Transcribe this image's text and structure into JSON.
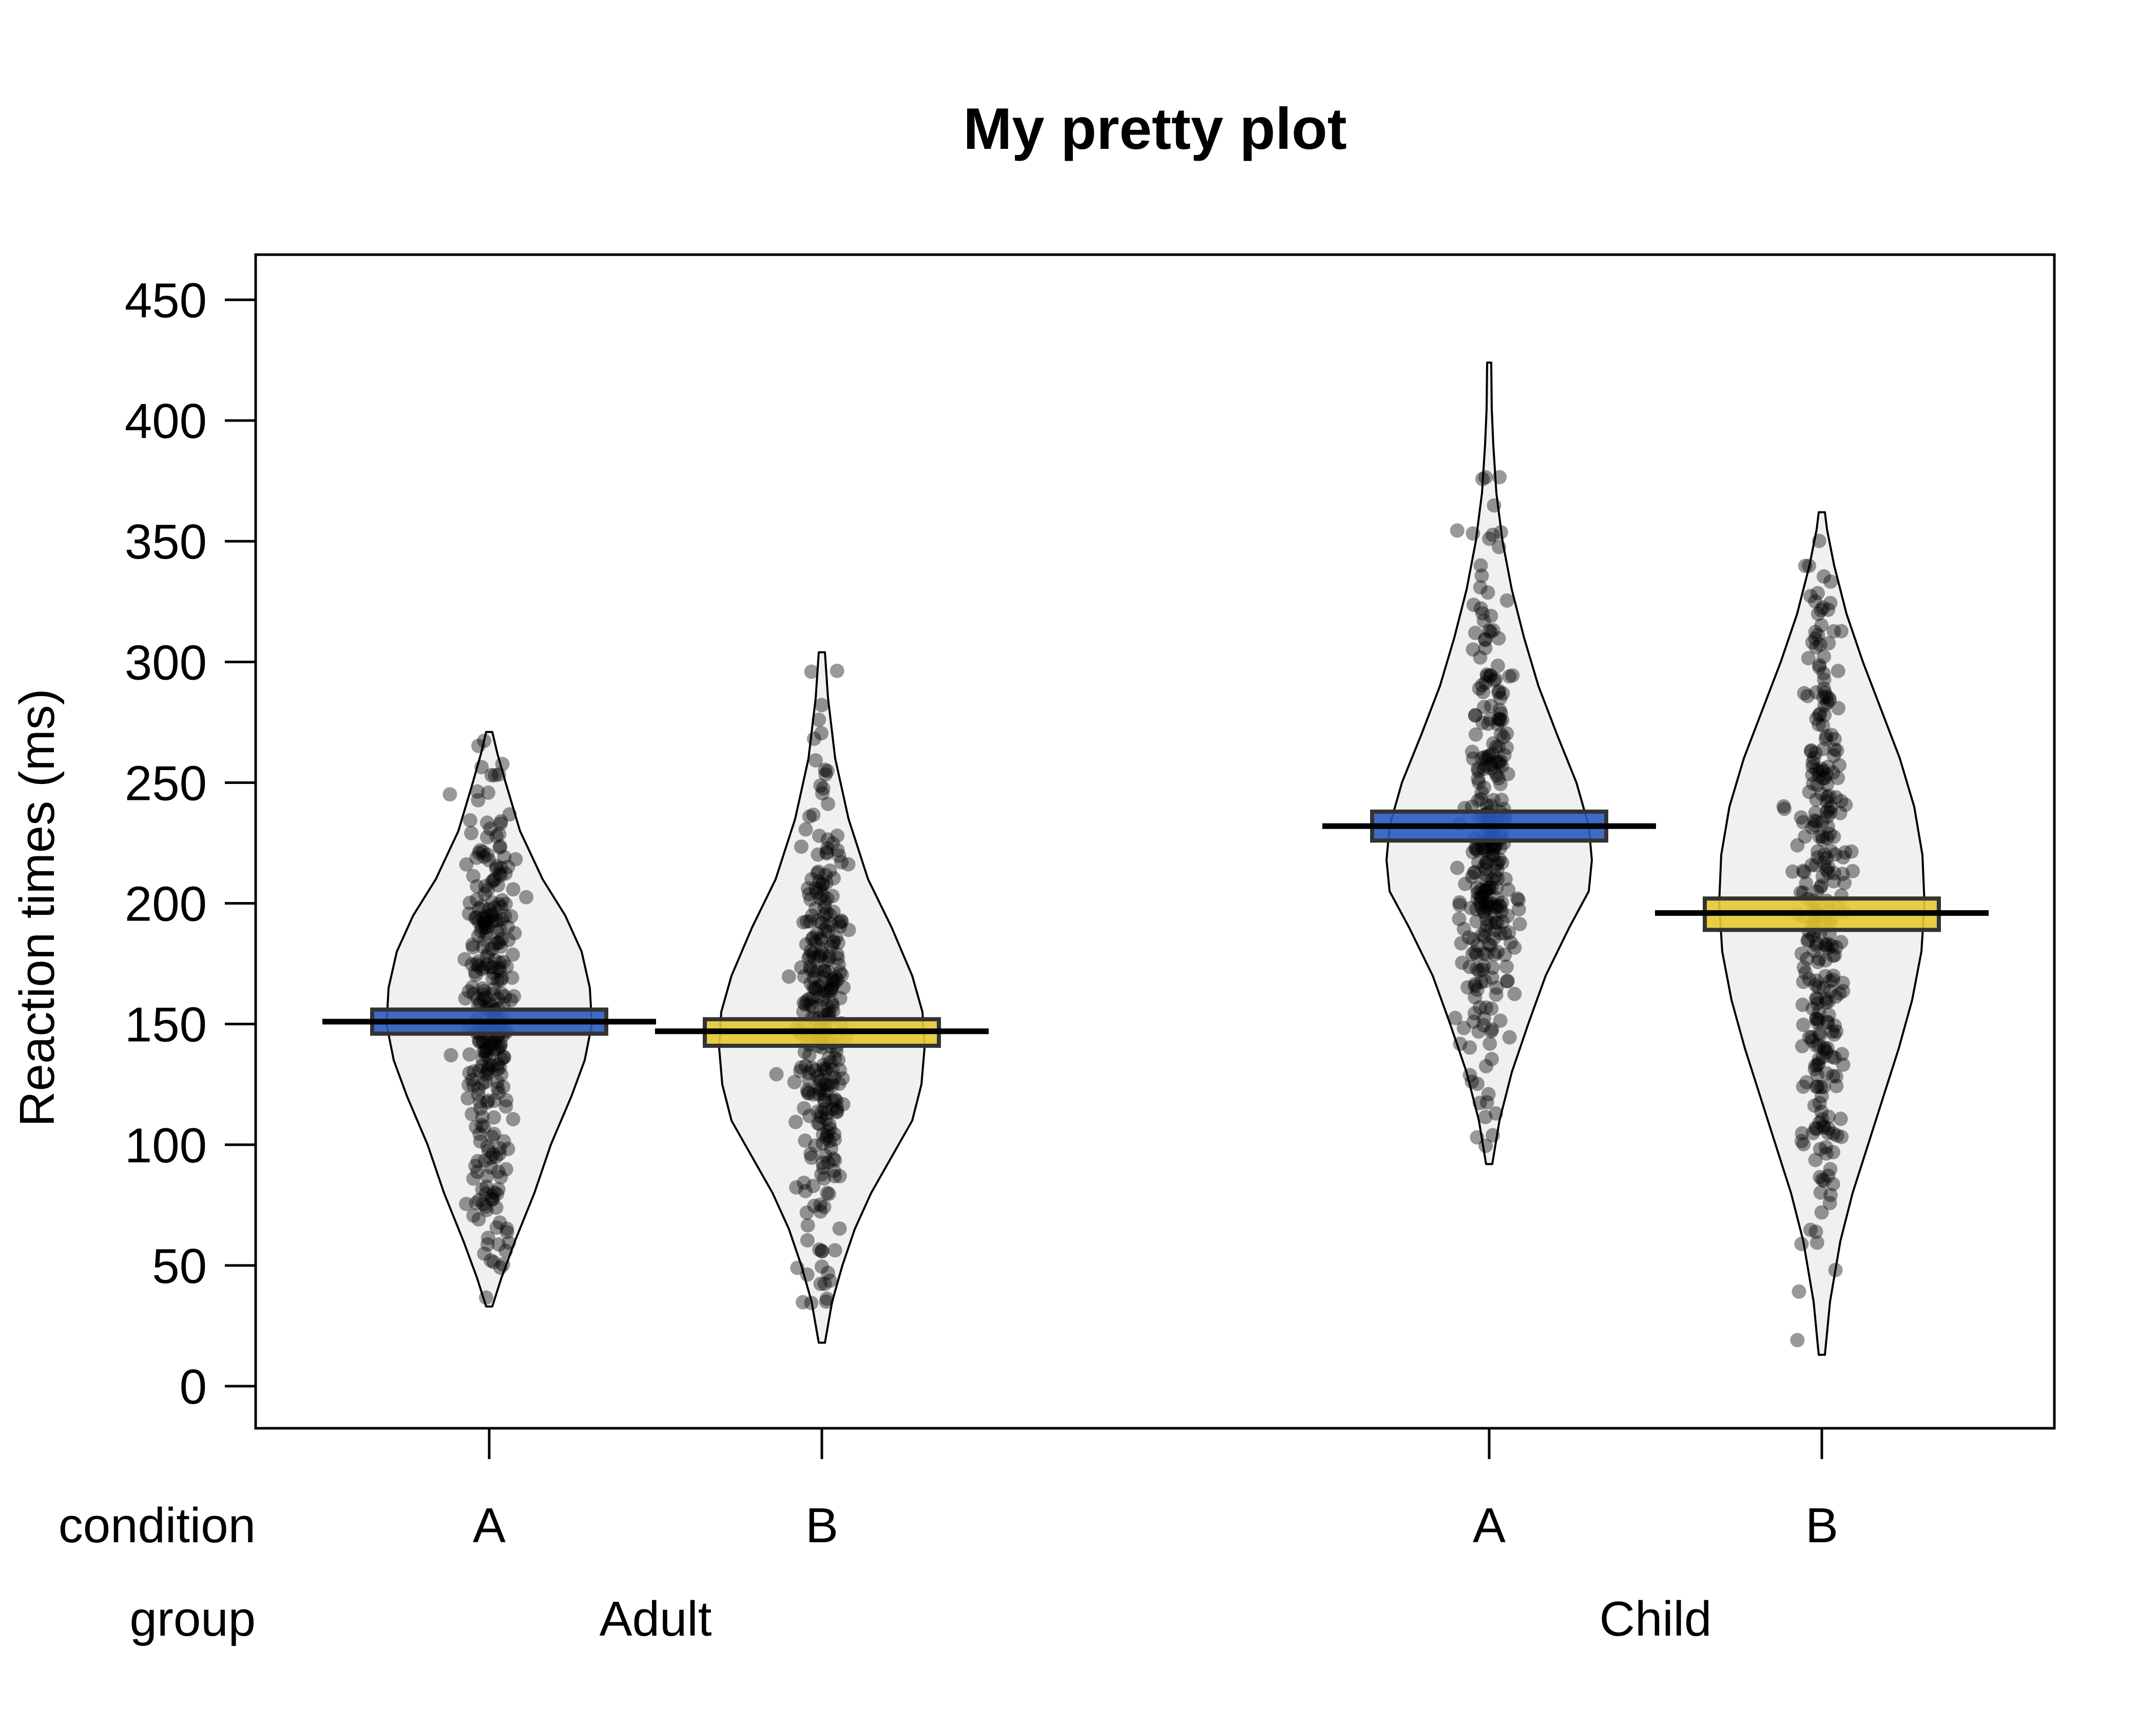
{
  "chart_data": {
    "type": "pirateplot",
    "title": "My pretty plot",
    "ylabel": "Reaction times (ms)",
    "xlabel": "",
    "ylim": [
      -18,
      468
    ],
    "yticks": [
      0,
      50,
      100,
      150,
      200,
      250,
      300,
      350,
      400,
      450
    ],
    "grid": false,
    "row_labels": {
      "condition": "condition",
      "group": "group"
    },
    "groups": [
      {
        "name": "Adult",
        "conditions": [
          {
            "name": "A",
            "mean": 151,
            "ci": [
              146,
              156
            ],
            "min": 33,
            "max": 271,
            "color": "#2b5bbf",
            "profile": [
              [
                33,
                0.03
              ],
              [
                45,
                0.12
              ],
              [
                60,
                0.25
              ],
              [
                80,
                0.44
              ],
              [
                100,
                0.6
              ],
              [
                120,
                0.8
              ],
              [
                135,
                0.93
              ],
              [
                150,
                1.0
              ],
              [
                165,
                0.98
              ],
              [
                180,
                0.9
              ],
              [
                195,
                0.74
              ],
              [
                210,
                0.52
              ],
              [
                230,
                0.3
              ],
              [
                250,
                0.16
              ],
              [
                262,
                0.08
              ],
              [
                271,
                0.03
              ]
            ]
          },
          {
            "name": "B",
            "mean": 147,
            "ci": [
              141,
              152
            ],
            "min": 18,
            "max": 304,
            "color": "#e5c832",
            "profile": [
              [
                18,
                0.03
              ],
              [
                35,
                0.1
              ],
              [
                50,
                0.2
              ],
              [
                65,
                0.32
              ],
              [
                80,
                0.48
              ],
              [
                95,
                0.68
              ],
              [
                110,
                0.88
              ],
              [
                125,
                0.97
              ],
              [
                140,
                1.0
              ],
              [
                155,
                0.98
              ],
              [
                170,
                0.88
              ],
              [
                190,
                0.68
              ],
              [
                210,
                0.45
              ],
              [
                235,
                0.26
              ],
              [
                260,
                0.13
              ],
              [
                285,
                0.06
              ],
              [
                304,
                0.03
              ]
            ]
          }
        ]
      },
      {
        "name": "Child",
        "conditions": [
          {
            "name": "A",
            "mean": 232,
            "ci": [
              226,
              238
            ],
            "min": 92,
            "max": 424,
            "color": "#2b5bbf",
            "profile": [
              [
                92,
                0.03
              ],
              [
                110,
                0.1
              ],
              [
                130,
                0.22
              ],
              [
                150,
                0.38
              ],
              [
                170,
                0.55
              ],
              [
                190,
                0.78
              ],
              [
                205,
                0.97
              ],
              [
                218,
                1.0
              ],
              [
                232,
                0.97
              ],
              [
                250,
                0.85
              ],
              [
                270,
                0.66
              ],
              [
                290,
                0.48
              ],
              [
                310,
                0.34
              ],
              [
                330,
                0.22
              ],
              [
                350,
                0.13
              ],
              [
                370,
                0.07
              ],
              [
                390,
                0.04
              ],
              [
                405,
                0.025
              ],
              [
                424,
                0.02
              ]
            ]
          },
          {
            "name": "B",
            "mean": 196,
            "ci": [
              189,
              202
            ],
            "min": 13,
            "max": 362,
            "color": "#e5c832",
            "profile": [
              [
                13,
                0.03
              ],
              [
                35,
                0.08
              ],
              [
                60,
                0.18
              ],
              [
                80,
                0.3
              ],
              [
                100,
                0.45
              ],
              [
                120,
                0.6
              ],
              [
                140,
                0.75
              ],
              [
                160,
                0.88
              ],
              [
                180,
                0.97
              ],
              [
                200,
                1.0
              ],
              [
                220,
                0.98
              ],
              [
                240,
                0.9
              ],
              [
                260,
                0.76
              ],
              [
                280,
                0.58
              ],
              [
                300,
                0.4
              ],
              [
                320,
                0.24
              ],
              [
                340,
                0.12
              ],
              [
                355,
                0.05
              ],
              [
                362,
                0.03
              ]
            ]
          }
        ]
      }
    ]
  }
}
